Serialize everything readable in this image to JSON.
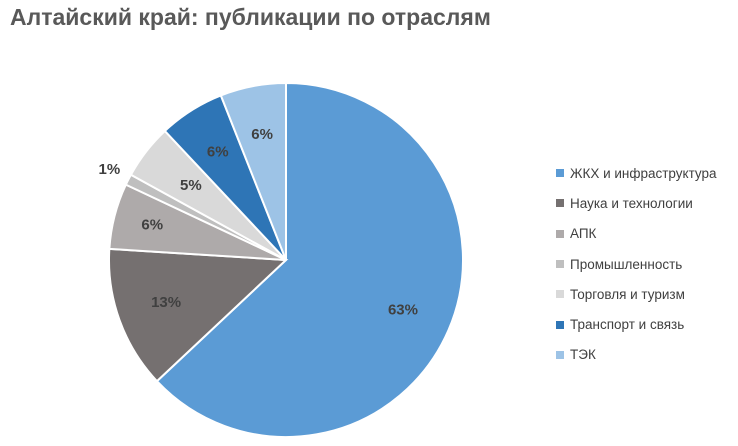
{
  "chart_data": {
    "type": "pie",
    "title": "Алтайский край: публикации по отраслям",
    "legend_position": "right",
    "slices": [
      {
        "name": "ЖКХ и инфраструктура",
        "value": 63,
        "label": "63%",
        "color": "#5b9bd5"
      },
      {
        "name": "Наука и технологии",
        "value": 13,
        "label": "13%",
        "color": "#757070"
      },
      {
        "name": "АПК",
        "value": 6,
        "label": "6%",
        "color": "#aeaaaa"
      },
      {
        "name": "Промышленность",
        "value": 1,
        "label": "1%",
        "color": "#bfbfbf"
      },
      {
        "name": "Торговля и туризм",
        "value": 5,
        "label": "5%",
        "color": "#d9d9d9"
      },
      {
        "name": "Транспорт и связь",
        "value": 6,
        "label": "6%",
        "color": "#2e75b6"
      },
      {
        "name": "ТЭК",
        "value": 6,
        "label": "6%",
        "color": "#9dc3e6"
      }
    ]
  }
}
